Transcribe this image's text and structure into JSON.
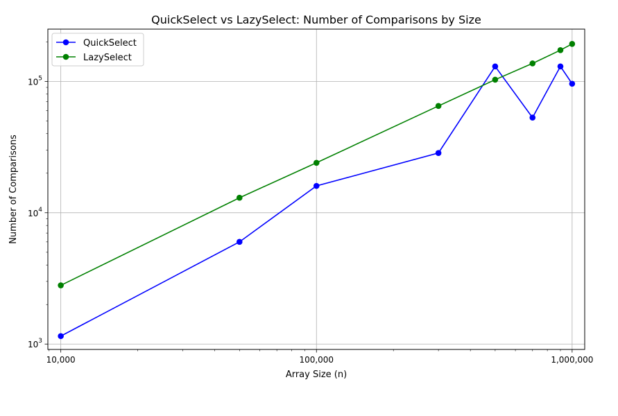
{
  "chart_data": {
    "type": "line",
    "title": "QuickSelect vs LazySelect: Number of Comparisons by Size",
    "xlabel": "Array Size (n)",
    "ylabel": "Number of Comparisons",
    "x_scale": "log",
    "y_scale": "log",
    "x": [
      10000,
      50000,
      100000,
      300000,
      500000,
      700000,
      900000,
      1000000
    ],
    "xlim": [
      8900,
      1120000
    ],
    "ylim": [
      910,
      250000
    ],
    "x_ticks": [
      {
        "value": 10000,
        "label": "10,000"
      },
      {
        "value": 100000,
        "label": "100,000"
      },
      {
        "value": 1000000,
        "label": "1,000,000"
      }
    ],
    "y_ticks": [
      {
        "value": 1000,
        "base": "10",
        "exp": "3"
      },
      {
        "value": 10000,
        "base": "10",
        "exp": "4"
      },
      {
        "value": 100000,
        "base": "10",
        "exp": "5"
      }
    ],
    "grid": true,
    "legend_position": "top-left",
    "series": [
      {
        "name": "QuickSelect",
        "color": "#0000ff",
        "values": [
          1150,
          6000,
          16000,
          28500,
          130000,
          53000,
          130000,
          96000
        ]
      },
      {
        "name": "LazySelect",
        "color": "#008000",
        "values": [
          2800,
          13000,
          24000,
          65000,
          103000,
          137000,
          173000,
          193000
        ]
      }
    ]
  }
}
